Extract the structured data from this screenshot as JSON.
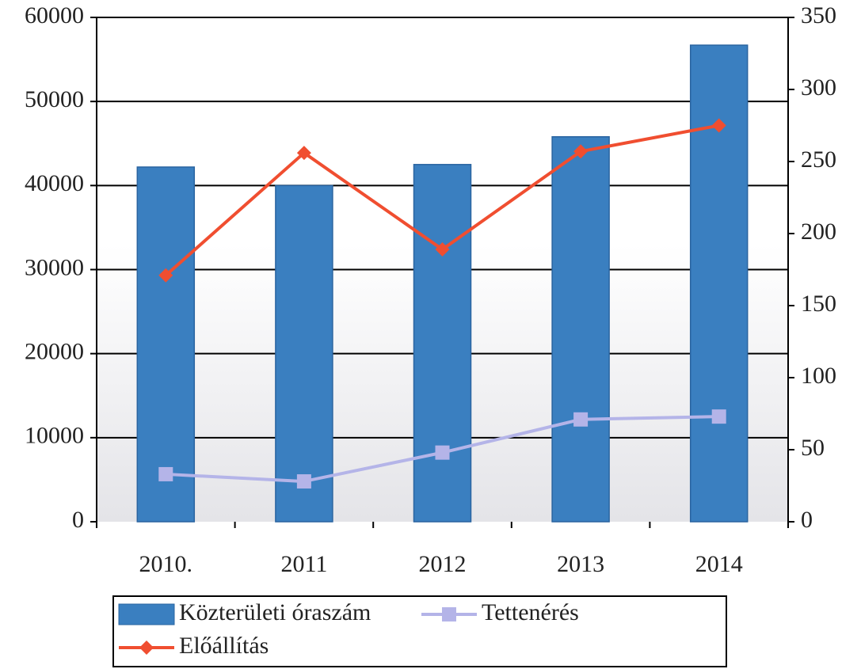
{
  "chart_data": {
    "type": "bar",
    "categories": [
      "2010.",
      "2011",
      "2012",
      "2013",
      "2014"
    ],
    "series": [
      {
        "name": "Közterületi óraszám",
        "type": "bar",
        "color": "#3a7fc0",
        "values": [
          42200,
          40000,
          42500,
          45800,
          56700
        ]
      },
      {
        "name": "Tettenérés",
        "type": "line",
        "marker": "square",
        "axis": "y2",
        "color": "#b4b4e8",
        "values": [
          33,
          28,
          48,
          71,
          73
        ]
      },
      {
        "name": "Előállítás",
        "type": "line",
        "marker": "diamond",
        "axis": "y2",
        "color": "#f04e30",
        "values": [
          171,
          256,
          189,
          257,
          275
        ]
      }
    ],
    "ylim": [
      0,
      60000
    ],
    "yticks": [
      0,
      10000,
      20000,
      30000,
      40000,
      50000,
      60000
    ],
    "y2lim": [
      0,
      350
    ],
    "y2ticks": [
      0,
      50,
      100,
      150,
      200,
      250,
      300,
      350
    ],
    "grid": true,
    "legend": "bottom"
  }
}
